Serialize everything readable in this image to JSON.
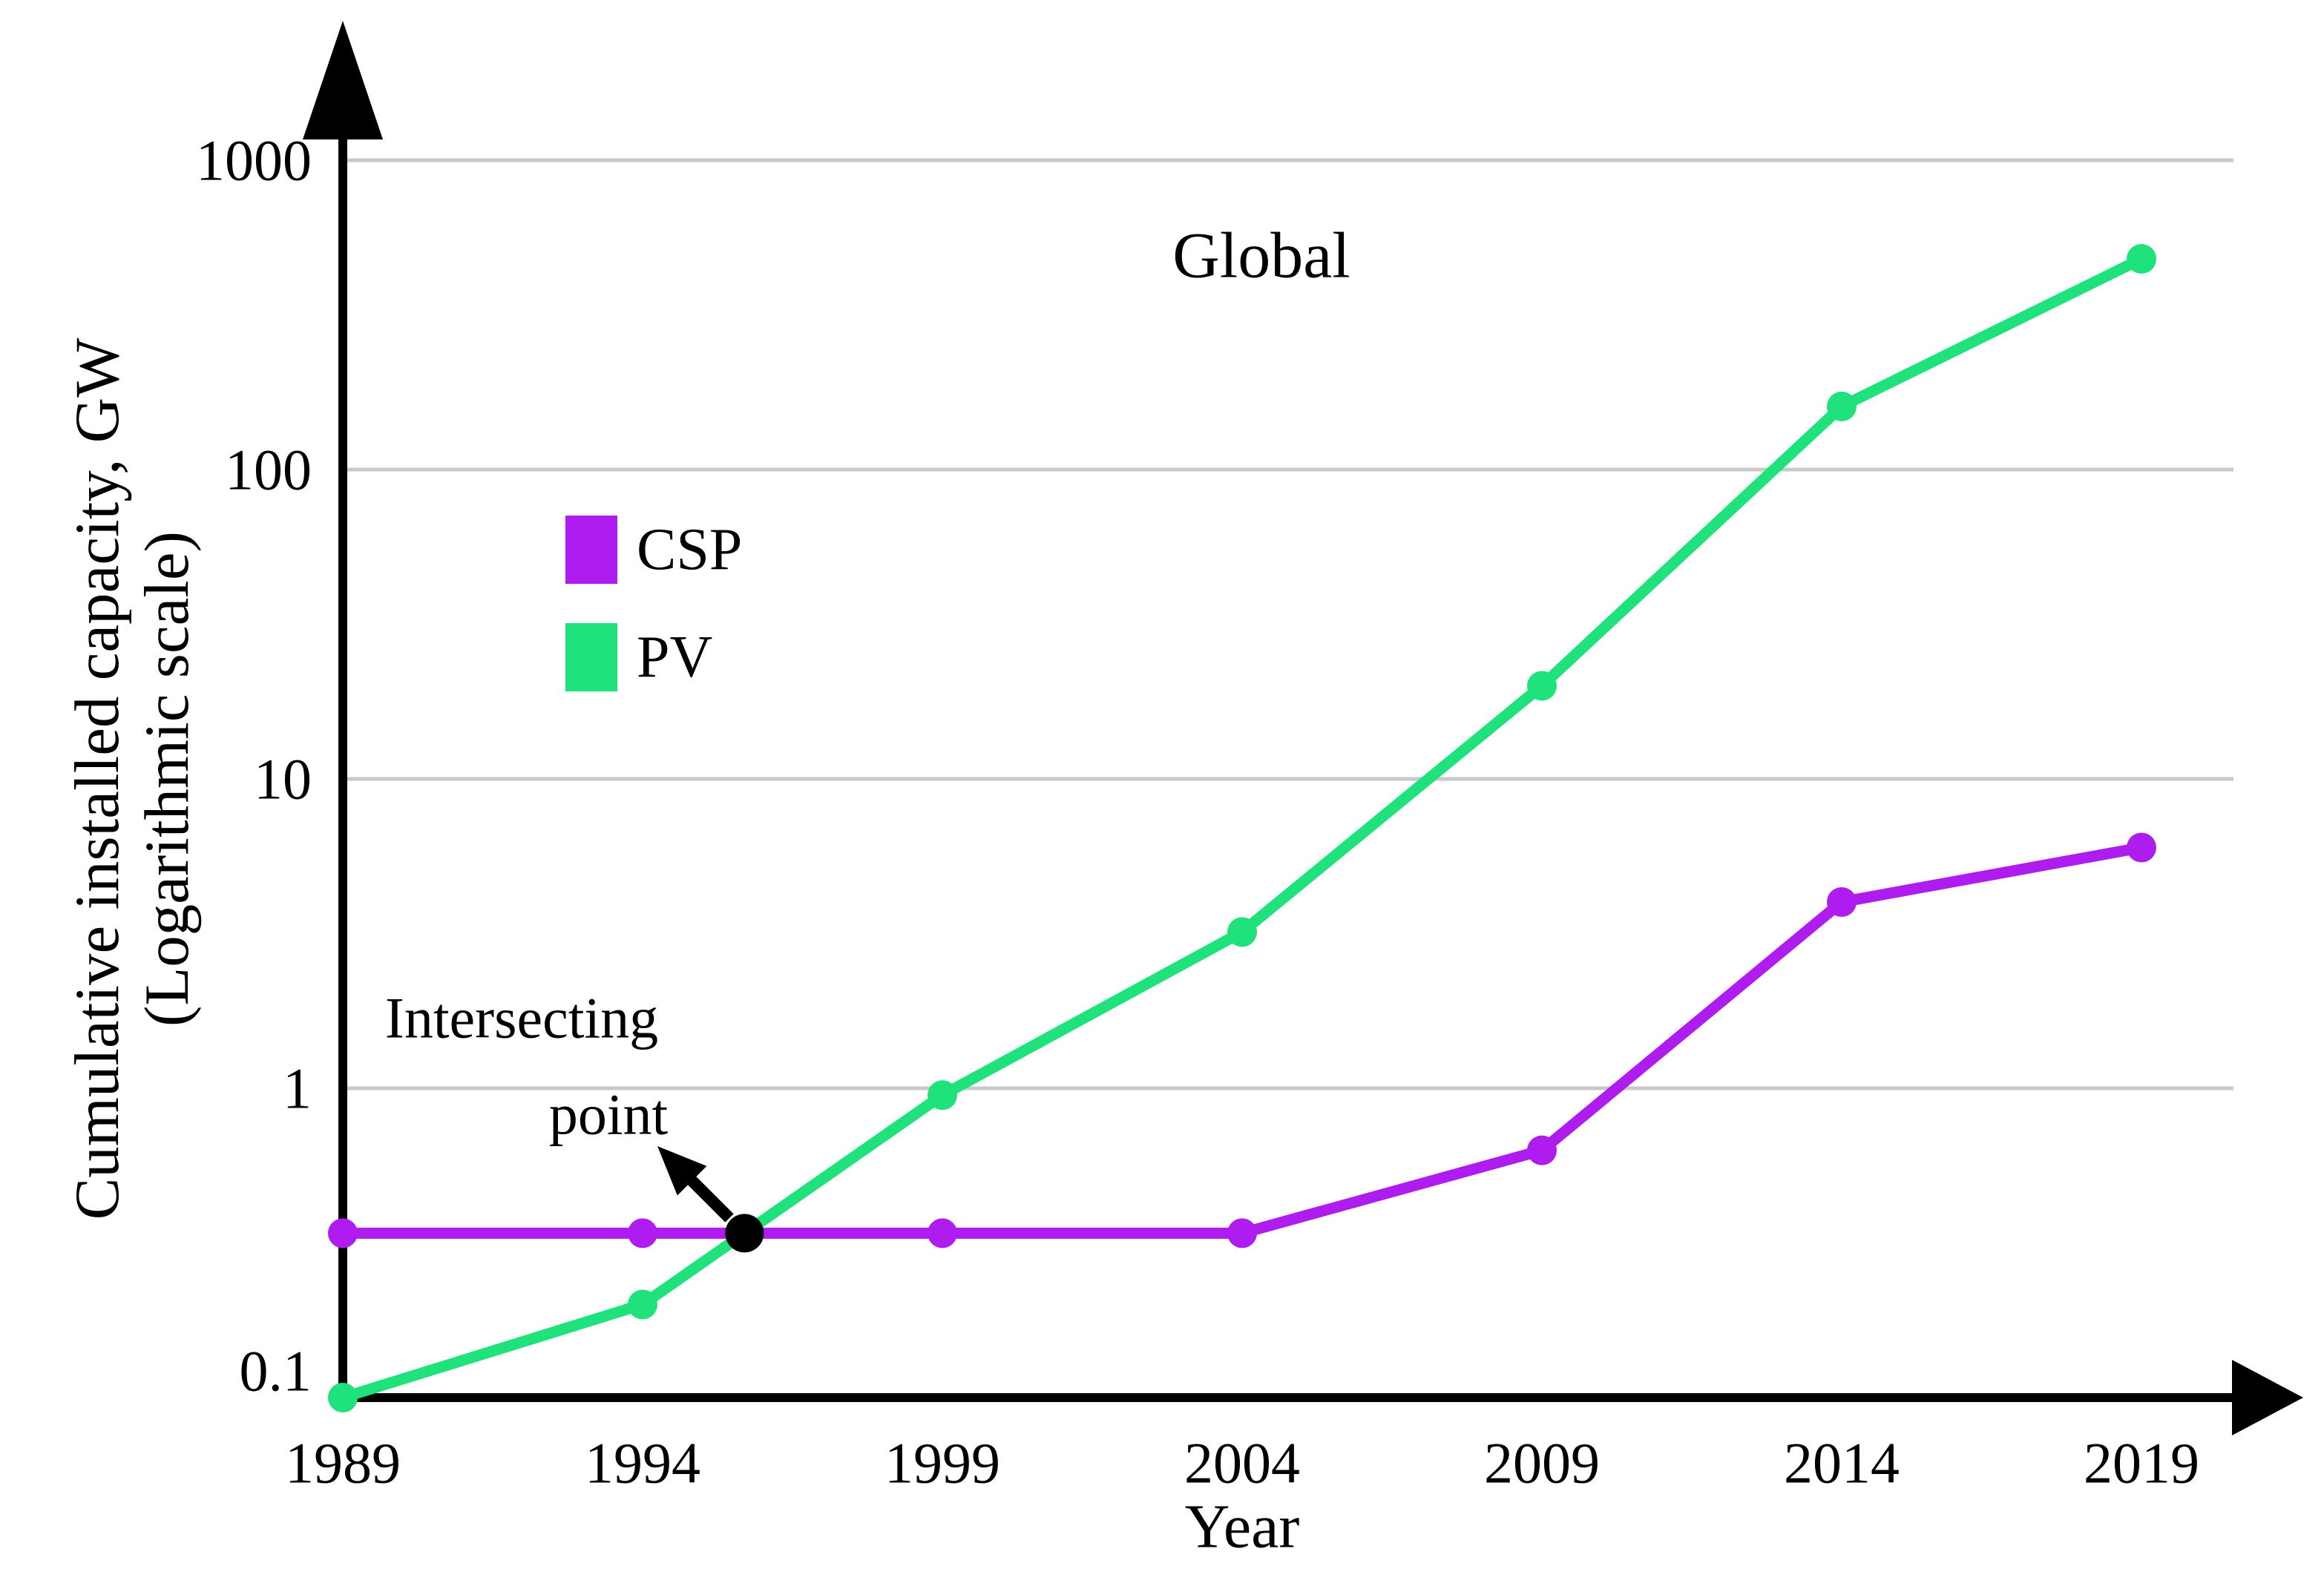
{
  "chart_data": {
    "type": "line",
    "title": "Global",
    "xlabel": "Year",
    "ylabel": "Cumulative installed capacity, GW",
    "ylabel_note": "(Logarithmic scale)",
    "y_scale": "log",
    "ylim": [
      0.1,
      1000
    ],
    "y_ticks": [
      1000,
      100,
      10,
      1,
      0.1
    ],
    "x_ticks": [
      1989,
      1994,
      1999,
      2004,
      2009,
      2014,
      2019
    ],
    "grid": "horizontal",
    "legend_position": "upper-left-inside",
    "series": [
      {
        "name": "CSP",
        "color": "#AE1CF0",
        "x": [
          1989,
          1994,
          1999,
          2004,
          2009,
          2014,
          2019
        ],
        "values": [
          0.34,
          0.34,
          0.34,
          0.34,
          0.63,
          4,
          6
        ]
      },
      {
        "name": "PV",
        "color": "#1FE27D",
        "x": [
          1989,
          1994,
          1999,
          2004,
          2009,
          2014,
          2019
        ],
        "values": [
          0.1,
          0.2,
          0.95,
          3.2,
          20,
          160,
          480
        ]
      }
    ],
    "annotation": {
      "label_line1": "Intersecting",
      "label_line2": "point",
      "marker_color": "#000000",
      "point": {
        "x": 1995.7,
        "value": 0.34
      }
    }
  },
  "colors": {
    "axis": "#000000",
    "grid": "#C9C9C9",
    "background": "#FFFFFF",
    "text": "#000000"
  }
}
